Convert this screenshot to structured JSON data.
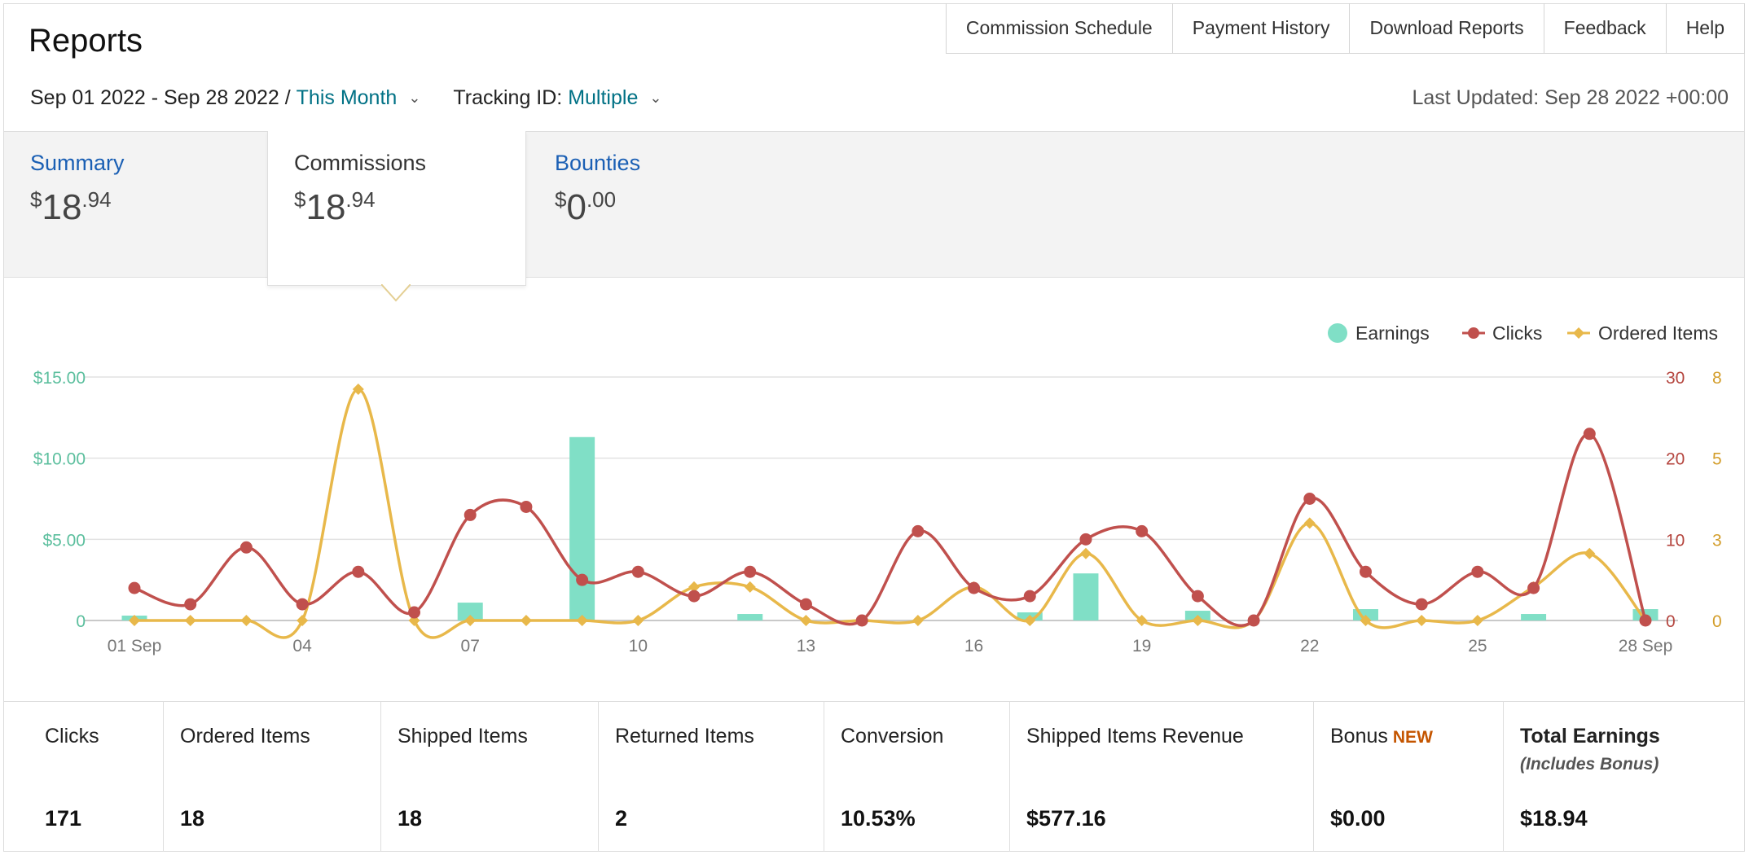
{
  "header": {
    "title": "Reports",
    "nav": [
      "Commission Schedule",
      "Payment History",
      "Download Reports",
      "Feedback",
      "Help"
    ]
  },
  "filters": {
    "date_range": "Sep 01 2022 - Sep 28 2022 / ",
    "date_preset": "This Month",
    "tracking_label": "Tracking ID: ",
    "tracking_value": "Multiple",
    "last_updated": "Last Updated: Sep 28 2022 +00:00"
  },
  "tabs": [
    {
      "label": "Summary",
      "currency": "$",
      "whole": "18",
      "cents": ".94",
      "active": false
    },
    {
      "label": "Commissions",
      "currency": "$",
      "whole": "18",
      "cents": ".94",
      "active": true
    },
    {
      "label": "Bounties",
      "currency": "$",
      "whole": "0",
      "cents": ".00",
      "active": false
    }
  ],
  "colors": {
    "earnings": "#80dfc6",
    "clicks": "#c0504d",
    "ordered": "#e8b84a",
    "earnings_axis": "#5cbf9e",
    "clicks_axis": "#b5463f",
    "ordered_axis": "#d39e2c"
  },
  "chart_data": {
    "type": "bar+line",
    "legend": [
      "Earnings",
      "Clicks",
      "Ordered Items"
    ],
    "legend_placement": "top-right",
    "x_tick_labels": [
      "01 Sep",
      "04",
      "07",
      "10",
      "13",
      "16",
      "19",
      "22",
      "25",
      "28 Sep"
    ],
    "x_tick_days": [
      1,
      4,
      7,
      10,
      13,
      16,
      19,
      22,
      25,
      28
    ],
    "days": [
      1,
      2,
      3,
      4,
      5,
      6,
      7,
      8,
      9,
      10,
      11,
      12,
      13,
      14,
      15,
      16,
      17,
      18,
      19,
      20,
      21,
      22,
      23,
      24,
      25,
      26,
      27,
      28
    ],
    "y_left": {
      "ticks": [
        "0",
        "$5.00",
        "$10.00",
        "$15.00"
      ],
      "values": [
        0,
        5,
        10,
        15
      ],
      "max": 15
    },
    "y_right_clicks": {
      "ticks": [
        "0",
        "10",
        "20",
        "30"
      ],
      "values": [
        0,
        10,
        20,
        30
      ],
      "max": 30
    },
    "y_right_ordered": {
      "ticks": [
        "0",
        "3",
        "5",
        "8"
      ],
      "values": [
        0,
        3,
        5,
        8
      ],
      "max": 8
    },
    "series": [
      {
        "name": "Earnings",
        "kind": "bar",
        "axis": "left",
        "values": [
          0.3,
          0,
          0,
          0,
          0,
          0,
          1.1,
          0,
          11.3,
          0,
          0,
          0.4,
          0,
          0,
          0,
          0,
          0.5,
          2.9,
          0,
          0.6,
          0,
          0,
          0.7,
          0,
          0,
          0.4,
          0,
          0.7
        ]
      },
      {
        "name": "Clicks",
        "kind": "line",
        "axis": "clicks",
        "values": [
          4,
          2,
          9,
          2,
          6,
          1,
          13,
          14,
          5,
          6,
          3,
          6,
          2,
          0,
          11,
          4,
          3,
          10,
          11,
          3,
          0,
          15,
          6,
          2,
          6,
          4,
          23,
          0
        ]
      },
      {
        "name": "Ordered Items",
        "kind": "line",
        "axis": "ordered",
        "values": [
          0,
          0,
          0,
          0,
          7.6,
          0,
          0,
          0,
          0,
          0,
          1.1,
          1.1,
          0,
          0,
          0,
          1.1,
          0,
          2.2,
          0,
          0,
          0,
          3.2,
          0,
          0,
          0,
          1.1,
          2.2,
          0
        ]
      }
    ]
  },
  "stats": [
    {
      "label": "Clicks",
      "value": "171"
    },
    {
      "label": "Ordered Items",
      "value": "18"
    },
    {
      "label": "Shipped Items",
      "value": "18"
    },
    {
      "label": "Returned Items",
      "value": "2"
    },
    {
      "label": "Conversion",
      "value": "10.53%"
    },
    {
      "label": "Shipped Items Revenue",
      "value": "$577.16"
    },
    {
      "label": "Bonus",
      "badge": "NEW",
      "value": "$0.00"
    },
    {
      "label": "Total Earnings",
      "sub": "(Includes Bonus)",
      "value": "$18.94"
    }
  ]
}
